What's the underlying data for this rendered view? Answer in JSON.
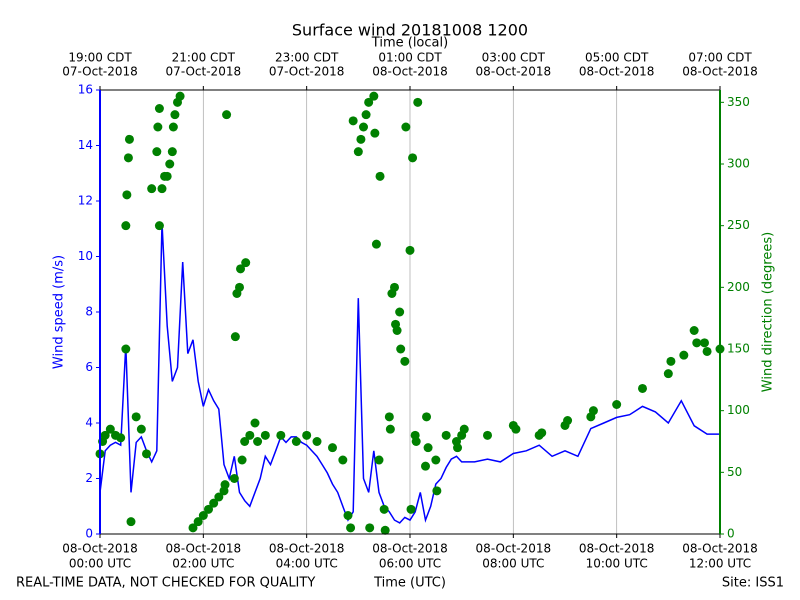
{
  "chart_data": {
    "type": "line-scatter",
    "title": "Surface wind 20181008 1200",
    "x_top_label": "Time (local)",
    "x_label": "Time (UTC)",
    "y_label": "Wind speed (m/s)",
    "y2_label": "Wind direction (degrees)",
    "footer_left": "REAL-TIME DATA, NOT CHECKED FOR QUALITY",
    "footer_right": "Site: ISS1",
    "xlim": [
      0,
      12
    ],
    "xticks": [
      {
        "value": 0,
        "label": [
          "08-Oct-2018",
          "00:00 UTC"
        ]
      },
      {
        "value": 2,
        "label": [
          "08-Oct-2018",
          "02:00 UTC"
        ]
      },
      {
        "value": 4,
        "label": [
          "08-Oct-2018",
          "04:00 UTC"
        ]
      },
      {
        "value": 6,
        "label": [
          "08-Oct-2018",
          "06:00 UTC"
        ]
      },
      {
        "value": 8,
        "label": [
          "08-Oct-2018",
          "08:00 UTC"
        ]
      },
      {
        "value": 10,
        "label": [
          "08-Oct-2018",
          "10:00 UTC"
        ]
      },
      {
        "value": 12,
        "label": [
          "08-Oct-2018",
          "12:00 UTC"
        ]
      }
    ],
    "x_top_ticks": [
      {
        "value": 0,
        "label": [
          "19:00 CDT",
          "07-Oct-2018"
        ]
      },
      {
        "value": 2,
        "label": [
          "21:00 CDT",
          "07-Oct-2018"
        ]
      },
      {
        "value": 4,
        "label": [
          "23:00 CDT",
          "07-Oct-2018"
        ]
      },
      {
        "value": 6,
        "label": [
          "01:00 CDT",
          "08-Oct-2018"
        ]
      },
      {
        "value": 8,
        "label": [
          "03:00 CDT",
          "08-Oct-2018"
        ]
      },
      {
        "value": 10,
        "label": [
          "05:00 CDT",
          "08-Oct-2018"
        ]
      },
      {
        "value": 12,
        "label": [
          "07:00 CDT",
          "08-Oct-2018"
        ]
      }
    ],
    "ylim": [
      0,
      16
    ],
    "yticks": [
      0,
      2,
      4,
      6,
      8,
      10,
      12,
      14,
      16
    ],
    "y2lim": [
      0,
      360
    ],
    "y2ticks": [
      0,
      50,
      100,
      150,
      200,
      250,
      300,
      350
    ],
    "grid": "x",
    "series": [
      {
        "name": "Wind speed",
        "type": "line",
        "color": "#0000ff",
        "x": [
          0,
          0.1,
          0.2,
          0.3,
          0.4,
          0.5,
          0.6,
          0.7,
          0.8,
          0.9,
          1,
          1.1,
          1.2,
          1.3,
          1.4,
          1.5,
          1.6,
          1.7,
          1.8,
          1.9,
          2,
          2.1,
          2.2,
          2.3,
          2.4,
          2.5,
          2.6,
          2.7,
          2.8,
          2.9,
          3,
          3.1,
          3.2,
          3.3,
          3.4,
          3.5,
          3.6,
          3.7,
          3.8,
          3.9,
          4,
          4.1,
          4.2,
          4.3,
          4.4,
          4.5,
          4.6,
          4.7,
          4.8,
          4.9,
          5,
          5.1,
          5.2,
          5.3,
          5.4,
          5.5,
          5.6,
          5.7,
          5.8,
          5.9,
          6,
          6.1,
          6.2,
          6.3,
          6.4,
          6.5,
          6.6,
          6.7,
          6.8,
          6.9,
          7,
          7.25,
          7.5,
          7.75,
          8,
          8.25,
          8.5,
          8.75,
          9,
          9.25,
          9.5,
          9.75,
          10,
          10.25,
          10.5,
          10.75,
          11,
          11.25,
          11.5,
          11.75,
          12
        ],
        "values": [
          1.5,
          3.0,
          3.2,
          3.3,
          3.2,
          6.8,
          1.5,
          3.3,
          3.5,
          3.0,
          2.6,
          3.0,
          11.2,
          7.5,
          5.5,
          6.0,
          9.8,
          6.5,
          7.0,
          5.5,
          4.6,
          5.2,
          4.8,
          4.5,
          2.5,
          2.0,
          2.8,
          1.5,
          1.2,
          1.0,
          1.5,
          2.0,
          2.8,
          2.5,
          3.0,
          3.5,
          3.3,
          3.5,
          3.5,
          3.3,
          3.2,
          3.0,
          2.8,
          2.5,
          2.2,
          1.8,
          1.5,
          1.0,
          0.5,
          0.8,
          8.5,
          2.0,
          1.5,
          3.0,
          1.5,
          1.0,
          0.8,
          0.5,
          0.4,
          0.6,
          0.5,
          0.8,
          1.5,
          0.5,
          1.0,
          1.8,
          2.0,
          2.4,
          2.7,
          2.8,
          2.6,
          2.6,
          2.7,
          2.6,
          2.9,
          3.0,
          3.2,
          2.8,
          3.0,
          2.8,
          3.8,
          4.0,
          4.2,
          4.3,
          4.6,
          4.4,
          4.0,
          4.8,
          3.9,
          3.6,
          3.6
        ]
      },
      {
        "name": "Wind direction",
        "type": "scatter",
        "color": "#008000",
        "axis": "y2",
        "x": [
          0,
          0.05,
          0.1,
          0.2,
          0.3,
          0.4,
          0.5,
          0.5,
          0.52,
          0.55,
          0.57,
          0.6,
          0.7,
          0.8,
          0.9,
          1.0,
          1.1,
          1.12,
          1.15,
          1.15,
          1.2,
          1.25,
          1.3,
          1.35,
          1.4,
          1.42,
          1.45,
          1.5,
          1.55,
          1.8,
          1.9,
          2.0,
          2.1,
          2.2,
          2.3,
          2.4,
          2.42,
          2.45,
          2.6,
          2.62,
          2.65,
          2.7,
          2.72,
          2.75,
          2.8,
          2.82,
          2.9,
          3.0,
          3.05,
          3.2,
          3.5,
          3.8,
          4.0,
          4.2,
          4.5,
          4.7,
          4.8,
          4.85,
          4.9,
          5.0,
          5.05,
          5.1,
          5.15,
          5.2,
          5.22,
          5.3,
          5.32,
          5.35,
          5.4,
          5.42,
          5.5,
          5.52,
          5.6,
          5.62,
          5.65,
          5.7,
          5.72,
          5.75,
          5.8,
          5.82,
          5.9,
          5.92,
          6.0,
          6.02,
          6.05,
          6.1,
          6.12,
          6.15,
          6.3,
          6.32,
          6.35,
          6.5,
          6.52,
          6.7,
          6.9,
          6.92,
          7.0,
          7.05,
          7.5,
          8.0,
          8.05,
          8.5,
          8.55,
          9.0,
          9.05,
          9.5,
          9.55,
          10.0,
          10.5,
          11.0,
          11.05,
          11.3,
          11.5,
          11.55,
          11.7,
          11.75,
          12.0
        ],
        "values": [
          65,
          75,
          80,
          85,
          80,
          78,
          150,
          250,
          275,
          305,
          320,
          10,
          95,
          85,
          65,
          280,
          310,
          330,
          345,
          250,
          280,
          290,
          290,
          300,
          310,
          330,
          340,
          350,
          355,
          5,
          10,
          15,
          20,
          25,
          30,
          35,
          40,
          340,
          45,
          160,
          195,
          200,
          215,
          60,
          75,
          220,
          80,
          90,
          75,
          80,
          80,
          75,
          80,
          75,
          70,
          60,
          15,
          5,
          335,
          310,
          320,
          330,
          340,
          350,
          5,
          355,
          325,
          235,
          60,
          290,
          20,
          3,
          95,
          85,
          195,
          200,
          170,
          165,
          180,
          150,
          140,
          330,
          230,
          20,
          305,
          80,
          75,
          350,
          55,
          95,
          70,
          60,
          35,
          80,
          75,
          70,
          80,
          85,
          80,
          88,
          85,
          80,
          82,
          88,
          92,
          95,
          100,
          105,
          118,
          130,
          140,
          145,
          165,
          155,
          155,
          148,
          150
        ]
      }
    ]
  }
}
